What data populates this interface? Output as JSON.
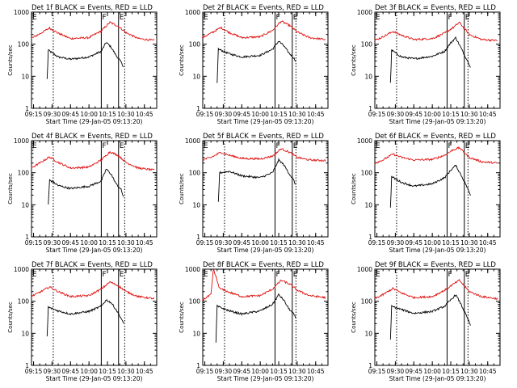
{
  "figure": {
    "xlabel": "Start Time (29-Jan-05 09:13:20)",
    "ylabel": "Counts/sec",
    "time_ticks": [
      "09:15",
      "09:30",
      "09:45",
      "10:00",
      "10:15",
      "10:30",
      "10:45"
    ],
    "y_ticks": [
      "1",
      "10",
      "100",
      "1000"
    ],
    "colors": {
      "events": "#000000",
      "lld": "#e01010",
      "axes": "#000000",
      "background": "#ffffff"
    },
    "markers": {
      "flare": "F",
      "eclipse": "E"
    }
  },
  "chart_data": [
    {
      "type": "line",
      "title": "Det 1f BLACK = Events, RED = LLD",
      "yscale": "log",
      "ylim": [
        1,
        1000
      ],
      "xlim": [
        "09:13:20",
        "10:55"
      ],
      "vlines_solid": [
        "10:10",
        "10:24"
      ],
      "vlines_dotted": [
        "09:31",
        "10:29"
      ],
      "series": [
        {
          "name": "Events",
          "color": "#000000",
          "x": [
            "09:26",
            "09:27",
            "09:35",
            "09:45",
            "10:00",
            "10:10",
            "10:14",
            "10:18",
            "10:22",
            "10:26",
            "10:28"
          ],
          "values": [
            8,
            65,
            40,
            34,
            40,
            60,
            115,
            80,
            45,
            28,
            20
          ]
        },
        {
          "name": "LLD",
          "color": "#e01010",
          "x": [
            "09:13",
            "09:20",
            "09:28",
            "09:35",
            "09:45",
            "10:00",
            "10:10",
            "10:17",
            "10:24",
            "10:30",
            "10:40",
            "10:53"
          ],
          "values": [
            150,
            210,
            320,
            220,
            150,
            160,
            260,
            480,
            360,
            230,
            150,
            130
          ]
        }
      ]
    },
    {
      "type": "line",
      "title": "Det 2f BLACK = Events, RED = LLD",
      "yscale": "log",
      "ylim": [
        1,
        1000
      ],
      "xlim": [
        "09:13:20",
        "10:55"
      ],
      "vlines_solid": [
        "10:12",
        "10:26"
      ],
      "vlines_dotted": [
        "09:31",
        "10:29"
      ],
      "series": [
        {
          "name": "Events",
          "color": "#000000",
          "x": [
            "09:25",
            "09:26",
            "09:35",
            "09:45",
            "10:00",
            "10:10",
            "10:15",
            "10:19",
            "10:23",
            "10:27",
            "10:29"
          ],
          "values": [
            6,
            70,
            50,
            40,
            45,
            70,
            125,
            90,
            55,
            38,
            30
          ]
        },
        {
          "name": "LLD",
          "color": "#e01010",
          "x": [
            "09:13",
            "09:20",
            "09:28",
            "09:35",
            "09:45",
            "10:00",
            "10:10",
            "10:17",
            "10:24",
            "10:30",
            "10:40",
            "10:53"
          ],
          "values": [
            160,
            220,
            330,
            230,
            160,
            170,
            270,
            520,
            380,
            240,
            160,
            140
          ]
        }
      ]
    },
    {
      "type": "line",
      "title": "Det 3f BLACK = Events, RED = LLD",
      "yscale": "log",
      "ylim": [
        1,
        1000
      ],
      "xlim": [
        "09:13:20",
        "10:55"
      ],
      "vlines_solid": [
        "10:12",
        "10:26"
      ],
      "vlines_dotted": [
        "09:31",
        "10:29"
      ],
      "series": [
        {
          "name": "Events",
          "color": "#000000",
          "x": [
            "09:26",
            "09:27",
            "09:35",
            "09:45",
            "10:00",
            "10:10",
            "10:15",
            "10:19",
            "10:23",
            "10:27",
            "10:31"
          ],
          "values": [
            6,
            65,
            40,
            35,
            42,
            60,
            110,
            160,
            80,
            40,
            20
          ]
        },
        {
          "name": "LLD",
          "color": "#e01010",
          "x": [
            "09:13",
            "09:20",
            "09:28",
            "09:35",
            "09:45",
            "10:00",
            "10:10",
            "10:17",
            "10:22",
            "10:30",
            "10:40",
            "10:53"
          ],
          "values": [
            130,
            170,
            250,
            190,
            140,
            150,
            220,
            330,
            480,
            200,
            140,
            130
          ]
        }
      ]
    },
    {
      "type": "line",
      "title": "Det 4f BLACK = Events, RED = LLD",
      "yscale": "log",
      "ylim": [
        1,
        1000
      ],
      "xlim": [
        "09:13:20",
        "10:55"
      ],
      "vlines_solid": [
        "10:10",
        "10:24"
      ],
      "vlines_dotted": [
        "09:31",
        "10:29"
      ],
      "series": [
        {
          "name": "Events",
          "color": "#000000",
          "x": [
            "09:27",
            "09:28",
            "09:35",
            "09:45",
            "10:00",
            "10:10",
            "10:14",
            "10:18",
            "10:22",
            "10:26",
            "10:28"
          ],
          "values": [
            10,
            60,
            40,
            32,
            38,
            55,
            130,
            90,
            45,
            30,
            18
          ]
        },
        {
          "name": "LLD",
          "color": "#e01010",
          "x": [
            "09:13",
            "09:20",
            "09:28",
            "09:35",
            "09:45",
            "10:00",
            "10:10",
            "10:17",
            "10:24",
            "10:30",
            "10:40",
            "10:53"
          ],
          "values": [
            140,
            200,
            310,
            210,
            140,
            150,
            250,
            450,
            340,
            210,
            140,
            120
          ]
        }
      ]
    },
    {
      "type": "line",
      "title": "Det 5f BLACK = Events, RED = LLD",
      "yscale": "log",
      "ylim": [
        1,
        1000
      ],
      "xlim": [
        "09:13:20",
        "10:55"
      ],
      "vlines_solid": [
        "10:12",
        "10:26"
      ],
      "vlines_dotted": [
        "09:31",
        "10:29"
      ],
      "series": [
        {
          "name": "Events",
          "color": "#000000",
          "x": [
            "09:26",
            "09:27",
            "09:35",
            "09:45",
            "10:00",
            "10:10",
            "10:15",
            "10:19",
            "10:23",
            "10:27",
            "10:29"
          ],
          "values": [
            12,
            100,
            110,
            80,
            70,
            100,
            250,
            180,
            100,
            60,
            40
          ]
        },
        {
          "name": "LLD",
          "color": "#e01010",
          "x": [
            "09:13",
            "09:20",
            "09:28",
            "09:35",
            "09:45",
            "10:00",
            "10:10",
            "10:17",
            "10:24",
            "10:30",
            "10:40",
            "10:53"
          ],
          "values": [
            250,
            300,
            430,
            350,
            280,
            270,
            330,
            560,
            430,
            300,
            250,
            240
          ]
        }
      ]
    },
    {
      "type": "line",
      "title": "Det 6f BLACK = Events, RED = LLD",
      "yscale": "log",
      "ylim": [
        1,
        1000
      ],
      "xlim": [
        "09:13:20",
        "10:55"
      ],
      "vlines_solid": [
        "10:12",
        "10:26"
      ],
      "vlines_dotted": [
        "09:31",
        "10:29"
      ],
      "series": [
        {
          "name": "Events",
          "color": "#000000",
          "x": [
            "09:26",
            "09:27",
            "09:35",
            "09:45",
            "10:00",
            "10:10",
            "10:15",
            "10:19",
            "10:23",
            "10:27",
            "10:31"
          ],
          "values": [
            8,
            75,
            50,
            38,
            45,
            70,
            120,
            170,
            90,
            45,
            20
          ]
        },
        {
          "name": "LLD",
          "color": "#e01010",
          "x": [
            "09:13",
            "09:20",
            "09:28",
            "09:35",
            "09:45",
            "10:00",
            "10:10",
            "10:17",
            "10:22",
            "10:30",
            "10:40",
            "10:53"
          ],
          "values": [
            200,
            250,
            380,
            300,
            250,
            260,
            350,
            520,
            600,
            300,
            220,
            200
          ]
        }
      ]
    },
    {
      "type": "line",
      "title": "Det 7f BLACK = Events, RED = LLD",
      "yscale": "log",
      "ylim": [
        1,
        1000
      ],
      "xlim": [
        "09:13:20",
        "10:55"
      ],
      "vlines_solid": [
        "10:10",
        "10:24"
      ],
      "vlines_dotted": [
        "09:31",
        "10:29"
      ],
      "series": [
        {
          "name": "Events",
          "color": "#000000",
          "x": [
            "09:26",
            "09:27",
            "09:35",
            "09:45",
            "10:00",
            "10:10",
            "10:14",
            "10:18",
            "10:22",
            "10:26",
            "10:28"
          ],
          "values": [
            8,
            65,
            50,
            40,
            48,
            70,
            110,
            90,
            55,
            30,
            20
          ]
        },
        {
          "name": "LLD",
          "color": "#e01010",
          "x": [
            "09:13",
            "09:20",
            "09:28",
            "09:35",
            "09:45",
            "10:00",
            "10:10",
            "10:17",
            "10:24",
            "10:30",
            "10:40",
            "10:53"
          ],
          "values": [
            140,
            190,
            280,
            200,
            140,
            150,
            240,
            400,
            300,
            200,
            140,
            120
          ]
        }
      ]
    },
    {
      "type": "line",
      "title": "Det 8f BLACK = Events, RED = LLD",
      "yscale": "log",
      "ylim": [
        1,
        1000
      ],
      "xlim": [
        "09:13:20",
        "10:55"
      ],
      "vlines_solid": [
        "10:12",
        "10:26"
      ],
      "vlines_dotted": [
        "09:31",
        "10:29"
      ],
      "series": [
        {
          "name": "Events",
          "color": "#000000",
          "x": [
            "09:24",
            "09:25",
            "09:35",
            "09:45",
            "10:00",
            "10:10",
            "10:15",
            "10:19",
            "10:23",
            "10:27",
            "10:29"
          ],
          "values": [
            5,
            70,
            50,
            40,
            50,
            80,
            160,
            110,
            60,
            40,
            30
          ]
        },
        {
          "name": "LLD",
          "color": "#e01010",
          "x": [
            "09:13",
            "09:20",
            "09:22",
            "09:27",
            "09:35",
            "09:45",
            "10:00",
            "10:10",
            "10:17",
            "10:24",
            "10:30",
            "10:40",
            "10:53"
          ],
          "values": [
            110,
            160,
            1000,
            250,
            190,
            140,
            150,
            240,
            450,
            340,
            220,
            150,
            130
          ]
        }
      ]
    },
    {
      "type": "line",
      "title": "Det 9f BLACK = Events, RED = LLD",
      "yscale": "log",
      "ylim": [
        1,
        1000
      ],
      "xlim": [
        "09:13:20",
        "10:55"
      ],
      "vlines_solid": [
        "10:12",
        "10:26"
      ],
      "vlines_dotted": [
        "09:31",
        "10:29"
      ],
      "series": [
        {
          "name": "Events",
          "color": "#000000",
          "x": [
            "09:26",
            "09:27",
            "09:35",
            "09:45",
            "10:00",
            "10:10",
            "10:15",
            "10:19",
            "10:23",
            "10:27",
            "10:31"
          ],
          "values": [
            6,
            70,
            55,
            42,
            48,
            70,
            110,
            160,
            85,
            40,
            18
          ]
        },
        {
          "name": "LLD",
          "color": "#e01010",
          "x": [
            "09:13",
            "09:20",
            "09:28",
            "09:35",
            "09:45",
            "10:00",
            "10:10",
            "10:17",
            "10:22",
            "10:30",
            "10:40",
            "10:53"
          ],
          "values": [
            120,
            160,
            250,
            180,
            130,
            140,
            220,
            340,
            450,
            200,
            140,
            120
          ]
        }
      ]
    }
  ]
}
